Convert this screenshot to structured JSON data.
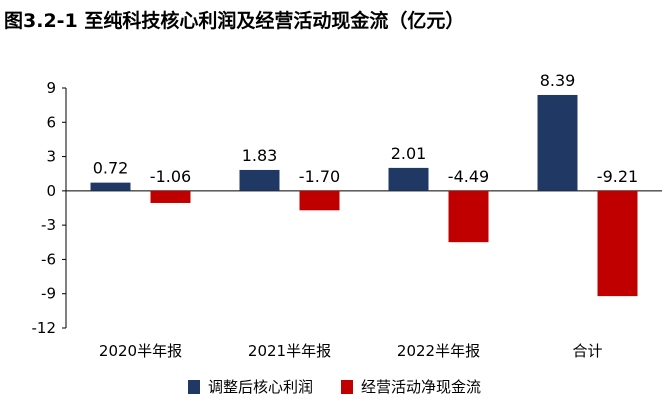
{
  "title": "图3.2-1 至纯科技核心利润及经营活动现金流（亿元）",
  "chart_data": {
    "type": "bar",
    "categories": [
      "2020半年报",
      "2021半年报",
      "2022半年报",
      "合计"
    ],
    "series": [
      {
        "name": "调整后核心利润",
        "values": [
          0.72,
          1.83,
          2.01,
          8.39
        ],
        "labels": [
          "0.72",
          "1.83",
          "2.01",
          "8.39"
        ],
        "color": "#1f3864"
      },
      {
        "name": "经营活动净现金流",
        "values": [
          -1.06,
          -1.7,
          -4.49,
          -9.21
        ],
        "labels": [
          "-1.06",
          "-1.70",
          "-4.49",
          "-9.21"
        ],
        "color": "#c00000"
      }
    ],
    "ylim": [
      -12,
      9
    ],
    "yticks": [
      9,
      6,
      3,
      0,
      -3,
      -6,
      -9,
      -12
    ],
    "ytick_labels": [
      "9",
      "6",
      "3",
      "0",
      "-3",
      "-6",
      "-9",
      "-12"
    ],
    "legend": "bottom",
    "grid": false
  }
}
